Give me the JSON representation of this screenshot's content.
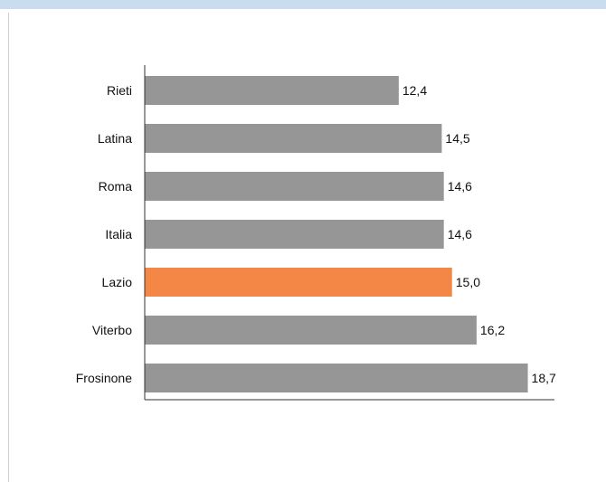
{
  "colors": {
    "bar": "#969696",
    "highlight": "#f58746",
    "axis": "#333333",
    "top_band": "#c9dcf0"
  },
  "chart_data": {
    "type": "bar",
    "orientation": "horizontal",
    "categories": [
      "Rieti",
      "Latina",
      "Roma",
      "Italia",
      "Lazio",
      "Viterbo",
      "Frosinone"
    ],
    "values": [
      12.4,
      14.5,
      14.6,
      14.6,
      15.0,
      16.2,
      18.7
    ],
    "value_labels": [
      "12,4",
      "14,5",
      "14,6",
      "14,6",
      "15,0",
      "16,2",
      "18,7"
    ],
    "highlighted_category": "Lazio",
    "xlim": [
      0,
      20
    ],
    "grid": false,
    "legend": "none"
  }
}
